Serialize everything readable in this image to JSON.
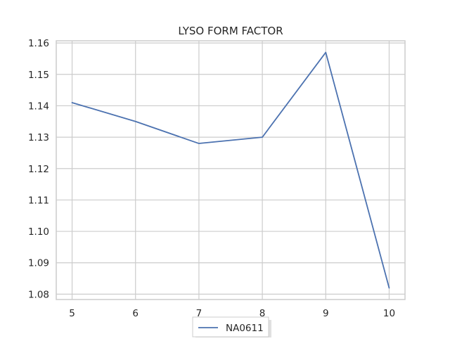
{
  "chart_data": {
    "type": "line",
    "title": "LYSO FORM FACTOR",
    "xlabel": "",
    "ylabel": "",
    "x": [
      5,
      6,
      7,
      8,
      9,
      10
    ],
    "series": [
      {
        "name": "NA0611",
        "color": "#4c72b0",
        "values": [
          1.141,
          1.135,
          1.128,
          1.13,
          1.157,
          1.082
        ]
      }
    ],
    "xticks": [
      "5",
      "6",
      "7",
      "8",
      "9",
      "10"
    ],
    "yticks": [
      "1.08",
      "1.09",
      "1.10",
      "1.11",
      "1.12",
      "1.13",
      "1.14",
      "1.15",
      "1.16"
    ],
    "xlim": [
      4.75,
      10.25
    ],
    "ylim": [
      1.0783,
      1.1607
    ],
    "grid": true,
    "legend_position": "bottom-center",
    "colors": {
      "grid": "#cccccc",
      "axes_edge": "#cccccc",
      "text": "#262626"
    }
  }
}
